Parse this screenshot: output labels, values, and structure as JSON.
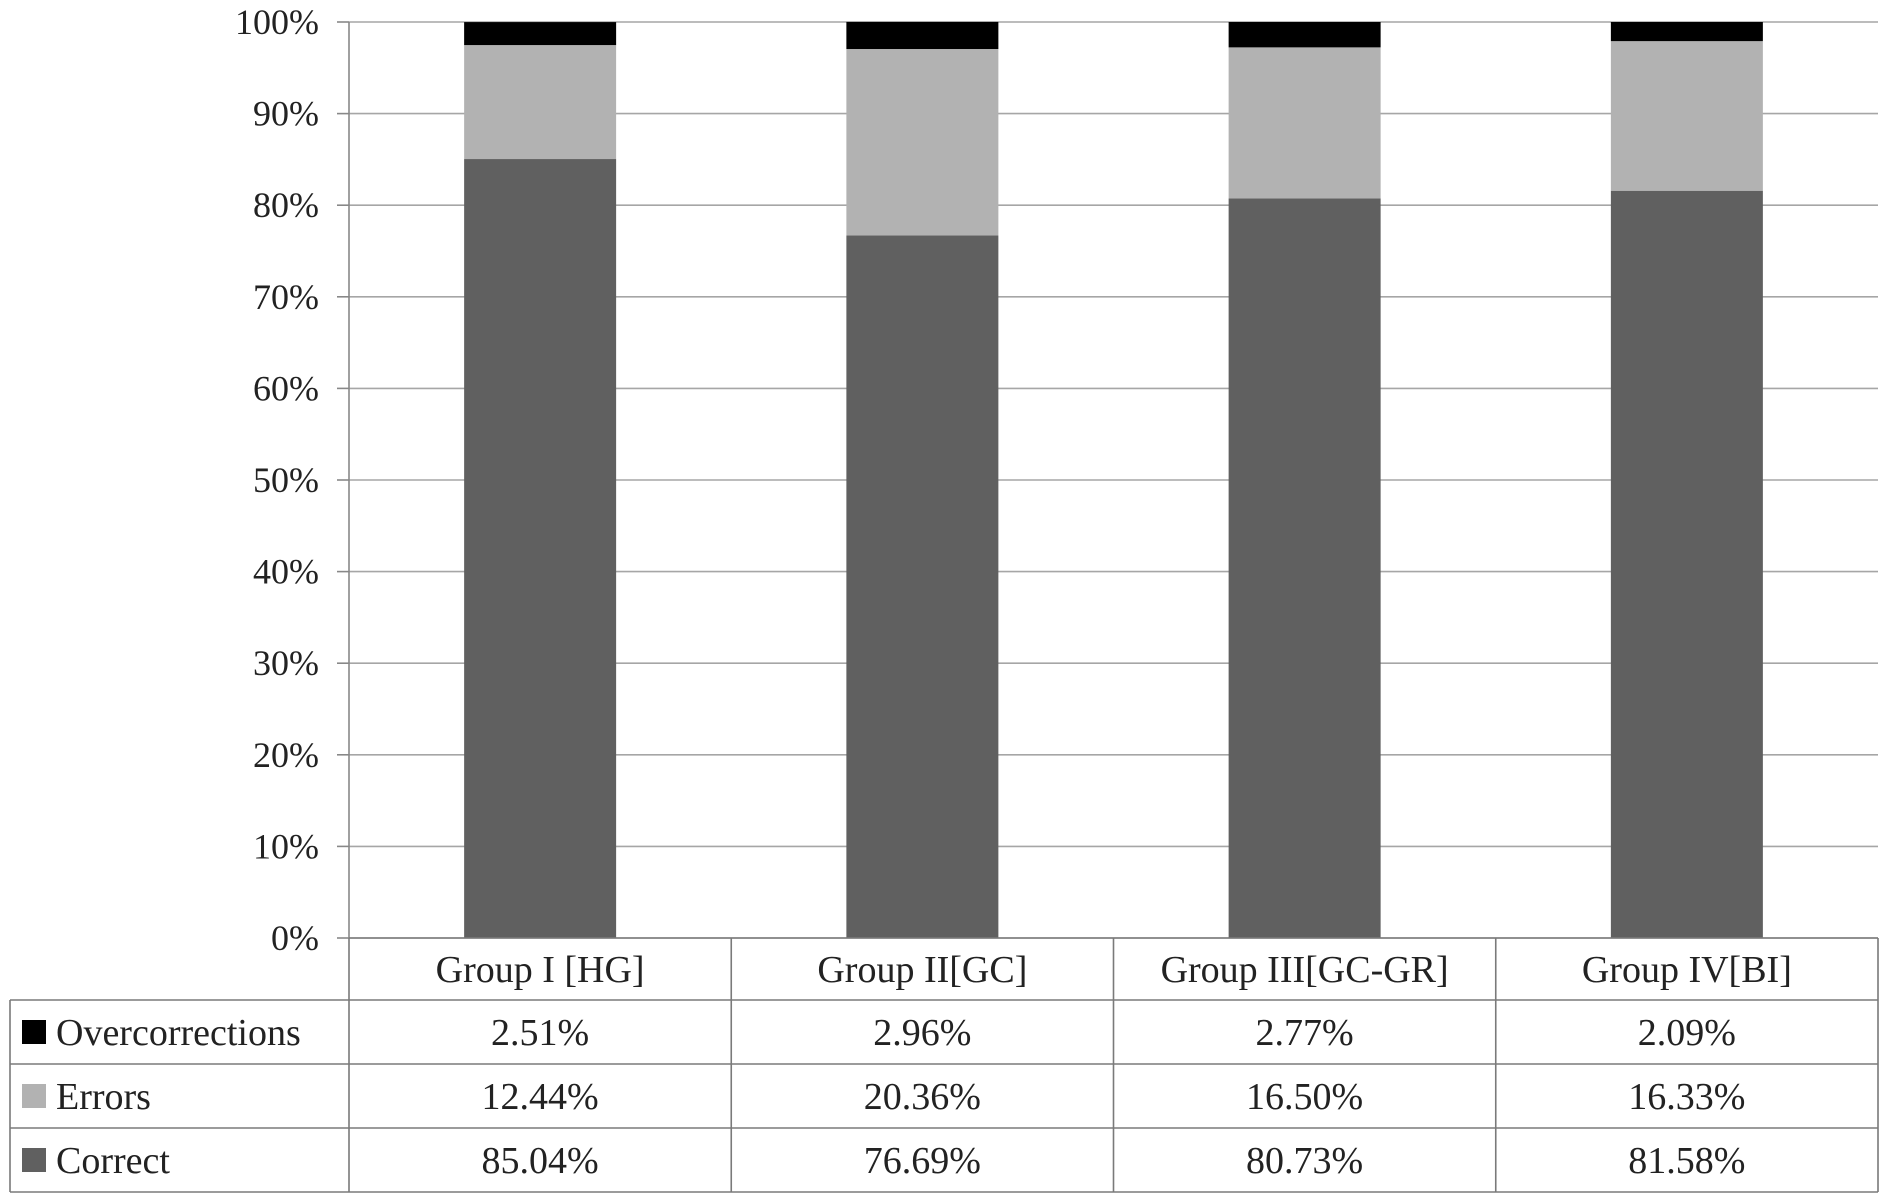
{
  "chart_data": {
    "type": "bar",
    "stacked": true,
    "percent_stacked": true,
    "categories": [
      "Group I  [HG]",
      "Group II[GC]",
      "Group III[GC-GR]",
      "Group IV[BI]"
    ],
    "series": [
      {
        "name": "Correct",
        "color": "#606060",
        "values": [
          85.04,
          76.69,
          80.73,
          81.58
        ],
        "labels": [
          "85.04%",
          "76.69%",
          "80.73%",
          "81.58%"
        ]
      },
      {
        "name": "Errors",
        "color": "#b2b2b2",
        "values": [
          12.44,
          20.36,
          16.5,
          16.33
        ],
        "labels": [
          "12.44%",
          "20.36%",
          "16.50%",
          "16.33%"
        ]
      },
      {
        "name": "Overcorrections",
        "color": "#000000",
        "values": [
          2.51,
          2.96,
          2.77,
          2.09
        ],
        "labels": [
          "2.51%",
          "2.96%",
          "2.77%",
          "2.09%"
        ]
      }
    ],
    "ylim": [
      0,
      100
    ],
    "yticks": [
      "0%",
      "10%",
      "20%",
      "30%",
      "40%",
      "50%",
      "60%",
      "70%",
      "80%",
      "90%",
      "100%"
    ],
    "grid": true,
    "legend": "data-table-left",
    "data_table_row_order": [
      "Overcorrections",
      "Errors",
      "Correct"
    ]
  }
}
